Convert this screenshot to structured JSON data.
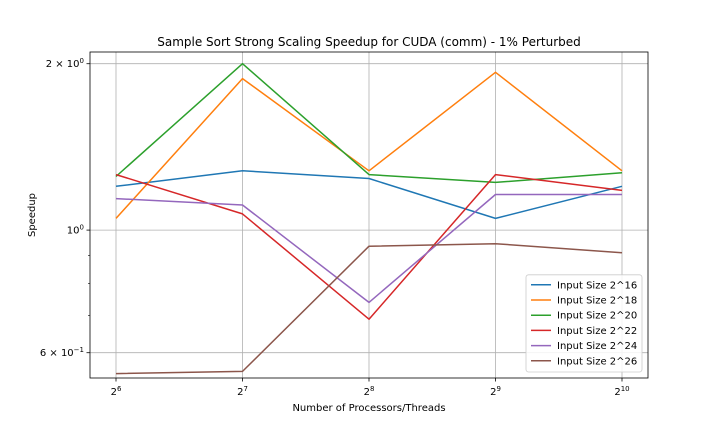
{
  "chart_data": {
    "type": "line",
    "title": "Sample Sort Strong Scaling Speedup for CUDA (comm) - 1% Perturbed",
    "xlabel": "Number of Processors/Threads",
    "ylabel": "Speedup",
    "x_scale": "log2",
    "y_scale": "log",
    "x": [
      64,
      128,
      256,
      512,
      1024
    ],
    "x_tick_labels": [
      {
        "base": "2",
        "exp": "6"
      },
      {
        "base": "2",
        "exp": "7"
      },
      {
        "base": "2",
        "exp": "8"
      },
      {
        "base": "2",
        "exp": "9"
      },
      {
        "base": "2",
        "exp": "10"
      }
    ],
    "y_ticks": [
      {
        "value": 2.0,
        "mantissa": "2",
        "exp": "0"
      },
      {
        "value": 1.0,
        "mantissa": "",
        "exp": "0",
        "plain": "10"
      },
      {
        "value": 0.6,
        "mantissa": "6",
        "exp": "−1"
      }
    ],
    "ylim": [
      0.54,
      2.1
    ],
    "grid": true,
    "legend_position": "lower-right",
    "series": [
      {
        "name": "Input Size 2^16",
        "color": "#1f77b4",
        "values": [
          1.2,
          1.28,
          1.24,
          1.05,
          1.2
        ]
      },
      {
        "name": "Input Size 2^18",
        "color": "#ff7f0e",
        "values": [
          1.05,
          1.88,
          1.28,
          1.93,
          1.28
        ]
      },
      {
        "name": "Input Size 2^20",
        "color": "#2ca02c",
        "values": [
          1.25,
          2.0,
          1.26,
          1.22,
          1.27
        ]
      },
      {
        "name": "Input Size 2^22",
        "color": "#d62728",
        "values": [
          1.26,
          1.07,
          0.69,
          1.26,
          1.18
        ]
      },
      {
        "name": "Input Size 2^24",
        "color": "#9467bd",
        "values": [
          1.14,
          1.11,
          0.74,
          1.16,
          1.16
        ]
      },
      {
        "name": "Input Size 2^26",
        "color": "#8c564b",
        "values": [
          0.55,
          0.555,
          0.935,
          0.945,
          0.91
        ]
      }
    ]
  }
}
